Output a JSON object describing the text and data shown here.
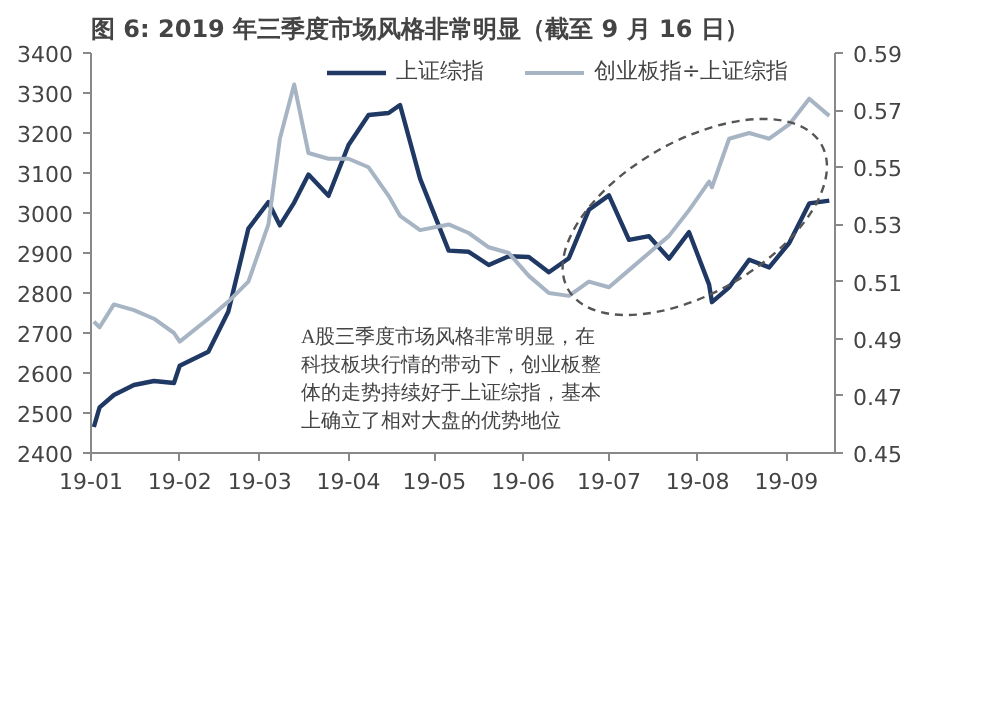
{
  "chart_data": {
    "type": "line",
    "title": "图 6: 2019 年三季度市场风格非常明显（截至 9 月 16 日）",
    "annotations": [
      "A股三季度市场风格非常明显，在科技板块行情的带动下，创业板整体的走势持续好于上证综指，基本上确立了相对大盘的优势地位"
    ],
    "x": [
      "2019-01-02",
      "2019-01-04",
      "2019-01-09",
      "2019-01-16",
      "2019-01-23",
      "2019-01-30",
      "2019-02-01",
      "2019-02-11",
      "2019-02-18",
      "2019-02-25",
      "2019-03-04",
      "2019-03-08",
      "2019-03-13",
      "2019-03-18",
      "2019-03-25",
      "2019-04-01",
      "2019-04-08",
      "2019-04-15",
      "2019-04-19",
      "2019-04-26",
      "2019-05-06",
      "2019-05-13",
      "2019-05-20",
      "2019-05-27",
      "2019-06-03",
      "2019-06-10",
      "2019-06-17",
      "2019-06-24",
      "2019-07-01",
      "2019-07-08",
      "2019-07-15",
      "2019-07-22",
      "2019-07-29",
      "2019-08-05",
      "2019-08-06",
      "2019-08-12",
      "2019-08-19",
      "2019-08-26",
      "2019-09-02",
      "2019-09-09",
      "2019-09-16"
    ],
    "series": [
      {
        "name": "上证综指",
        "color": "#1f3864",
        "values": [
          2465,
          2514,
          2545,
          2570,
          2580,
          2575,
          2618,
          2653,
          2754,
          2961,
          3027,
          2969,
          3026,
          3096,
          3043,
          3170,
          3245,
          3250,
          3270,
          3086,
          2906,
          2903,
          2870,
          2892,
          2890,
          2852,
          2887,
          3008,
          3044,
          2933,
          2942,
          2886,
          2952,
          2821,
          2777,
          2814,
          2883,
          2864,
          2925,
          3024,
          3031
        ]
      },
      {
        "name": "创业板指÷上证综指",
        "color": "#a6b4c4",
        "axis": "y2",
        "values": [
          0.496,
          0.494,
          0.502,
          0.5,
          0.497,
          0.492,
          0.489,
          0.497,
          0.503,
          0.51,
          0.53,
          0.56,
          0.579,
          0.555,
          0.553,
          0.553,
          0.55,
          0.54,
          0.533,
          0.528,
          0.53,
          0.527,
          0.522,
          0.52,
          0.512,
          0.506,
          0.505,
          0.51,
          0.508,
          0.514,
          0.52,
          0.526,
          0.535,
          0.545,
          0.543,
          0.56,
          0.562,
          0.56,
          0.565,
          0.574,
          0.568
        ]
      }
    ],
    "xlim": [
      "2019-01-01",
      "2019-09-18"
    ],
    "xticks": [
      {
        "value": "2019-01-01",
        "label": "19-01"
      },
      {
        "value": "2019-02-01",
        "label": "19-02"
      },
      {
        "value": "2019-03-01",
        "label": "19-03"
      },
      {
        "value": "2019-04-01",
        "label": "19-04"
      },
      {
        "value": "2019-05-01",
        "label": "19-05"
      },
      {
        "value": "2019-06-01",
        "label": "19-06"
      },
      {
        "value": "2019-07-01",
        "label": "19-07"
      },
      {
        "value": "2019-08-01",
        "label": "19-08"
      },
      {
        "value": "2019-09-01",
        "label": "19-09"
      }
    ],
    "ylim": [
      2400,
      3400
    ],
    "yticks": [
      2400,
      2500,
      2600,
      2700,
      2800,
      2900,
      3000,
      3100,
      3200,
      3300,
      3400
    ],
    "y2lim": [
      0.45,
      0.59
    ],
    "y2ticks": [
      0.45,
      0.47,
      0.49,
      0.51,
      0.53,
      0.55,
      0.57,
      0.59
    ],
    "legend": "top",
    "grid": false
  }
}
